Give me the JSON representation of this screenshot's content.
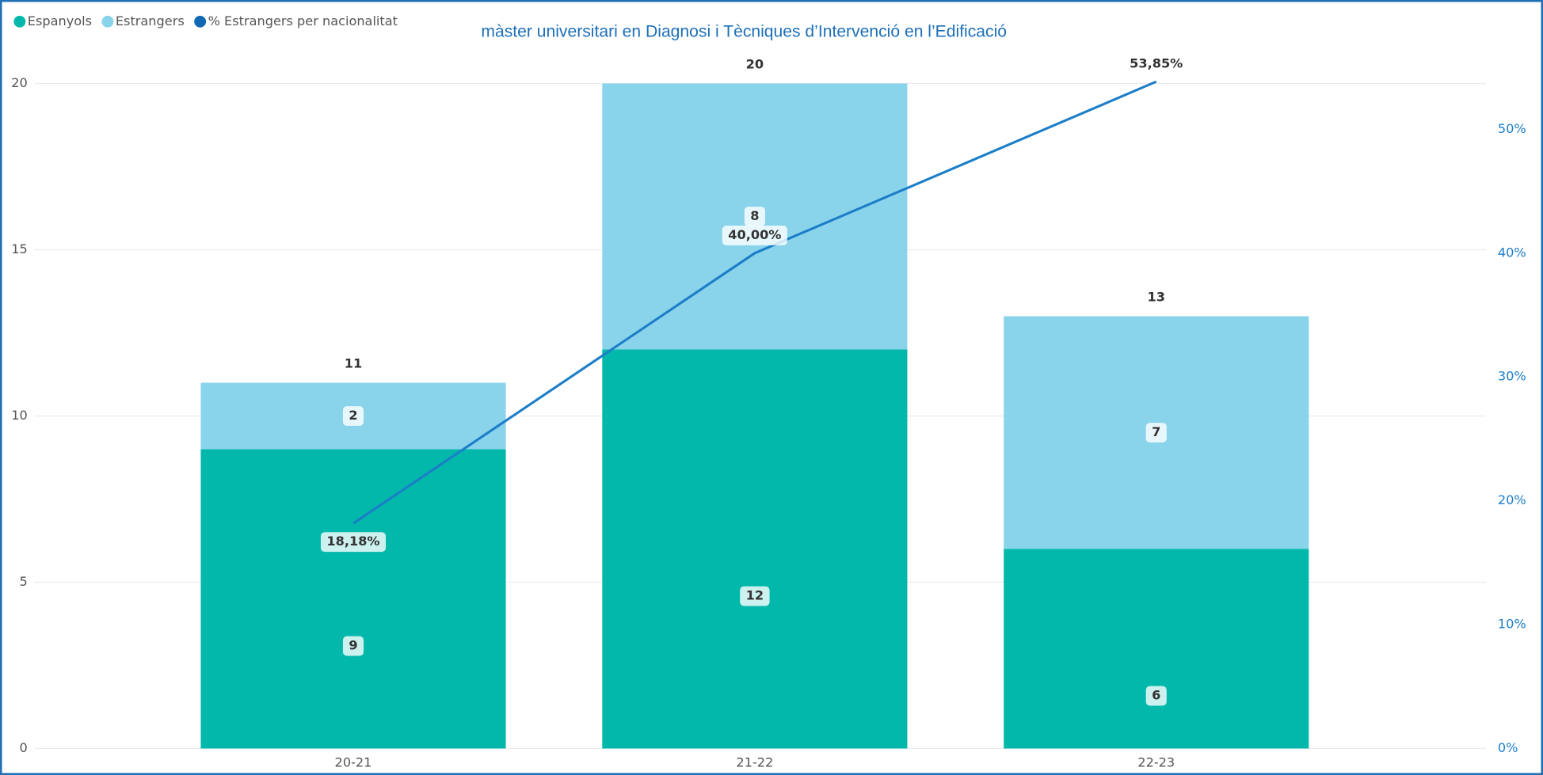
{
  "chart_data": {
    "type": "bar",
    "stacked": true,
    "title": "màster universitari en Diagnosi i Tècniques d’Intervenció en l’Edificació",
    "categories": [
      "20-21",
      "21-22",
      "22-23"
    ],
    "series": [
      {
        "name": "Espanyols",
        "color": "#01b8aa",
        "values": [
          9,
          12,
          6
        ]
      },
      {
        "name": "Estrangers",
        "color": "#8ad4eb",
        "values": [
          2,
          8,
          7
        ]
      },
      {
        "name": "% Estrangers per nacionalitat",
        "type": "line",
        "axis": "y2",
        "color": "#1c7ec8",
        "values": [
          18.18,
          40,
          53.85
        ],
        "value_labels": [
          "18,18%",
          "40,00%",
          "53,85%"
        ]
      }
    ],
    "totals": [
      11,
      20,
      13
    ],
    "ylim": [
      0,
      20
    ],
    "yticks": [
      0,
      5,
      10,
      15,
      20
    ],
    "y2lim": [
      0,
      53.7
    ],
    "y2ticks": [
      {
        "value": 0,
        "label": "0%"
      },
      {
        "value": 10,
        "label": "10%"
      },
      {
        "value": 20,
        "label": "20%"
      },
      {
        "value": 30,
        "label": "30%"
      },
      {
        "value": 40,
        "label": "40%"
      },
      {
        "value": 50,
        "label": "50%"
      }
    ],
    "grid": true,
    "legend": "top-left"
  }
}
